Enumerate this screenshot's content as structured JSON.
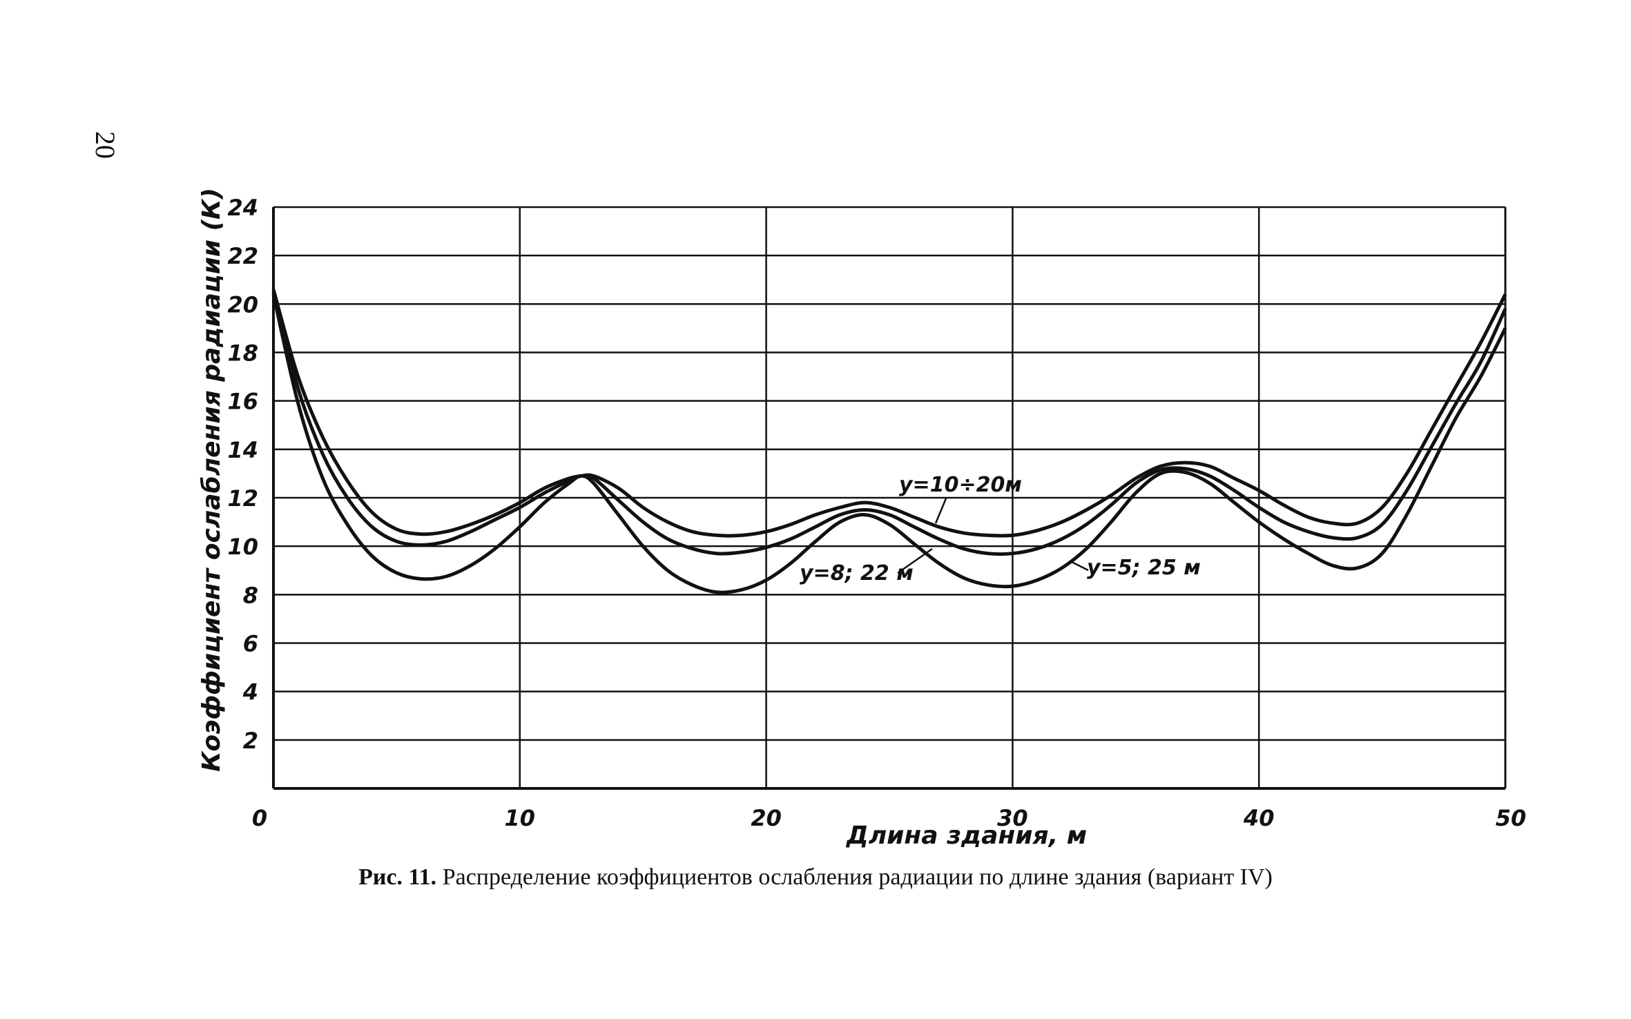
{
  "page_number": "20",
  "caption": {
    "lead": "Рис. 11.",
    "text": "Распределение коэффициентов ослабления радиации по длине здания (вариант IV)"
  },
  "chart_data": {
    "type": "line",
    "xlabel": "Длина здания, м",
    "ylabel": "Коэффициент ослабления радиации (К)",
    "xlim": [
      0,
      50
    ],
    "ylim": [
      0,
      24
    ],
    "xticks": [
      0,
      10,
      20,
      30,
      40,
      50
    ],
    "yticks": [
      2,
      4,
      6,
      8,
      10,
      12,
      14,
      16,
      18,
      20,
      22,
      24
    ],
    "grid": true,
    "series": [
      {
        "name": "y=10÷20м",
        "points": [
          [
            0,
            20.6
          ],
          [
            1,
            17.0
          ],
          [
            2,
            14.5
          ],
          [
            3,
            12.7
          ],
          [
            4,
            11.4
          ],
          [
            5,
            10.7
          ],
          [
            6,
            10.5
          ],
          [
            7,
            10.6
          ],
          [
            8,
            10.9
          ],
          [
            9,
            11.3
          ],
          [
            10,
            11.8
          ],
          [
            11,
            12.4
          ],
          [
            12,
            12.8
          ],
          [
            12.5,
            12.9
          ],
          [
            13,
            12.9
          ],
          [
            14,
            12.4
          ],
          [
            15,
            11.6
          ],
          [
            16,
            11.0
          ],
          [
            17,
            10.6
          ],
          [
            18,
            10.45
          ],
          [
            19,
            10.45
          ],
          [
            20,
            10.6
          ],
          [
            21,
            10.9
          ],
          [
            22,
            11.3
          ],
          [
            23,
            11.6
          ],
          [
            24,
            11.8
          ],
          [
            25,
            11.6
          ],
          [
            26,
            11.2
          ],
          [
            27,
            10.8
          ],
          [
            28,
            10.55
          ],
          [
            29,
            10.45
          ],
          [
            30,
            10.45
          ],
          [
            31,
            10.65
          ],
          [
            32,
            11.0
          ],
          [
            33,
            11.5
          ],
          [
            34,
            12.1
          ],
          [
            35,
            12.8
          ],
          [
            36,
            13.3
          ],
          [
            37,
            13.45
          ],
          [
            38,
            13.3
          ],
          [
            39,
            12.8
          ],
          [
            40,
            12.3
          ],
          [
            41,
            11.7
          ],
          [
            42,
            11.2
          ],
          [
            43,
            10.95
          ],
          [
            44,
            10.95
          ],
          [
            45,
            11.6
          ],
          [
            46,
            13.0
          ],
          [
            47,
            14.8
          ],
          [
            48,
            16.6
          ],
          [
            49,
            18.4
          ],
          [
            50,
            20.4
          ]
        ]
      },
      {
        "name": "y=8; 22 м",
        "points": [
          [
            0,
            20.5
          ],
          [
            1,
            16.5
          ],
          [
            2,
            13.8
          ],
          [
            3,
            12.0
          ],
          [
            4,
            10.8
          ],
          [
            5,
            10.2
          ],
          [
            6,
            10.05
          ],
          [
            7,
            10.2
          ],
          [
            8,
            10.6
          ],
          [
            9,
            11.1
          ],
          [
            10,
            11.6
          ],
          [
            11,
            12.2
          ],
          [
            12,
            12.7
          ],
          [
            12.5,
            12.9
          ],
          [
            13,
            12.8
          ],
          [
            14,
            11.9
          ],
          [
            15,
            11.0
          ],
          [
            16,
            10.3
          ],
          [
            17,
            9.9
          ],
          [
            18,
            9.7
          ],
          [
            19,
            9.75
          ],
          [
            20,
            9.95
          ],
          [
            21,
            10.3
          ],
          [
            22,
            10.8
          ],
          [
            23,
            11.3
          ],
          [
            24,
            11.5
          ],
          [
            25,
            11.3
          ],
          [
            26,
            10.8
          ],
          [
            27,
            10.3
          ],
          [
            28,
            9.9
          ],
          [
            29,
            9.7
          ],
          [
            30,
            9.7
          ],
          [
            31,
            9.9
          ],
          [
            32,
            10.3
          ],
          [
            33,
            10.9
          ],
          [
            34,
            11.7
          ],
          [
            35,
            12.6
          ],
          [
            36,
            13.15
          ],
          [
            37,
            13.2
          ],
          [
            38,
            12.9
          ],
          [
            39,
            12.3
          ],
          [
            40,
            11.6
          ],
          [
            41,
            11.0
          ],
          [
            42,
            10.6
          ],
          [
            43,
            10.35
          ],
          [
            44,
            10.35
          ],
          [
            45,
            10.9
          ],
          [
            46,
            12.3
          ],
          [
            47,
            14.1
          ],
          [
            48,
            15.9
          ],
          [
            49,
            17.6
          ],
          [
            50,
            19.8
          ]
        ]
      },
      {
        "name": "y=5; 25 м",
        "points": [
          [
            0,
            20.4
          ],
          [
            1,
            15.9
          ],
          [
            2,
            12.8
          ],
          [
            3,
            10.9
          ],
          [
            4,
            9.6
          ],
          [
            5,
            8.9
          ],
          [
            6,
            8.65
          ],
          [
            7,
            8.75
          ],
          [
            8,
            9.2
          ],
          [
            9,
            9.9
          ],
          [
            10,
            10.8
          ],
          [
            11,
            11.8
          ],
          [
            12,
            12.6
          ],
          [
            12.5,
            12.9
          ],
          [
            13,
            12.6
          ],
          [
            14,
            11.3
          ],
          [
            15,
            10.0
          ],
          [
            16,
            9.0
          ],
          [
            17,
            8.4
          ],
          [
            18,
            8.1
          ],
          [
            19,
            8.2
          ],
          [
            20,
            8.6
          ],
          [
            21,
            9.3
          ],
          [
            22,
            10.2
          ],
          [
            23,
            11.0
          ],
          [
            24,
            11.3
          ],
          [
            25,
            10.9
          ],
          [
            26,
            10.1
          ],
          [
            27,
            9.3
          ],
          [
            28,
            8.7
          ],
          [
            29,
            8.4
          ],
          [
            30,
            8.35
          ],
          [
            31,
            8.6
          ],
          [
            32,
            9.1
          ],
          [
            33,
            9.9
          ],
          [
            34,
            11.0
          ],
          [
            35,
            12.2
          ],
          [
            36,
            13.0
          ],
          [
            37,
            13.05
          ],
          [
            38,
            12.6
          ],
          [
            39,
            11.8
          ],
          [
            40,
            11.0
          ],
          [
            41,
            10.3
          ],
          [
            42,
            9.7
          ],
          [
            43,
            9.2
          ],
          [
            44,
            9.1
          ],
          [
            45,
            9.7
          ],
          [
            46,
            11.3
          ],
          [
            47,
            13.3
          ],
          [
            48,
            15.3
          ],
          [
            49,
            17.0
          ],
          [
            50,
            19.0
          ]
        ]
      }
    ],
    "annotations": [
      {
        "text": "y=10÷20м",
        "series": 0
      },
      {
        "text": "y=8; 22 м",
        "series": 1
      },
      {
        "text": "y=5; 25 м",
        "series": 2
      }
    ]
  }
}
